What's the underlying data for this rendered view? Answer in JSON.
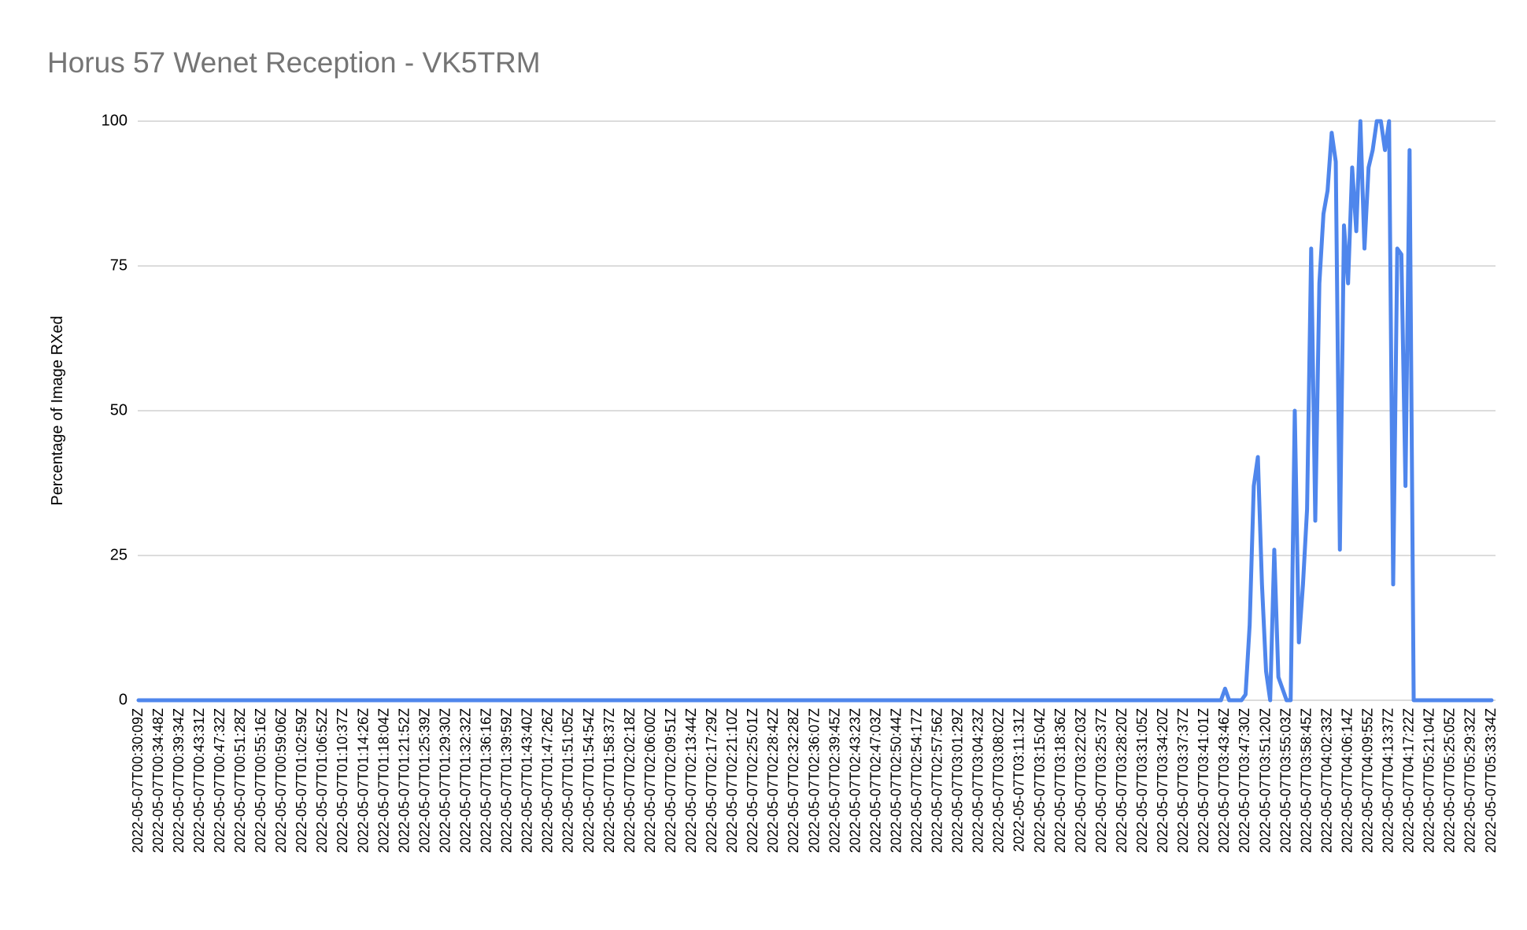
{
  "chart_data": {
    "type": "line",
    "title": "Horus 57 Wenet Reception - VK5TRM",
    "y_label": "Percentage of Image RXed",
    "categories": [
      "2022-05-07T00:30:09Z",
      null,
      null,
      null,
      null,
      "2022-05-07T00:34:48Z",
      null,
      null,
      null,
      null,
      "2022-05-07T00:39:34Z",
      null,
      null,
      null,
      null,
      "2022-05-07T00:43:31Z",
      null,
      null,
      null,
      null,
      "2022-05-07T00:47:32Z",
      null,
      null,
      null,
      null,
      "2022-05-07T00:51:28Z",
      null,
      null,
      null,
      null,
      "2022-05-07T00:55:16Z",
      null,
      null,
      null,
      null,
      "2022-05-07T00:59:06Z",
      null,
      null,
      null,
      null,
      "2022-05-07T01:02:59Z",
      null,
      null,
      null,
      null,
      "2022-05-07T01:06:52Z",
      null,
      null,
      null,
      null,
      "2022-05-07T01:10:37Z",
      null,
      null,
      null,
      null,
      "2022-05-07T01:14:26Z",
      null,
      null,
      null,
      null,
      "2022-05-07T01:18:04Z",
      null,
      null,
      null,
      null,
      "2022-05-07T01:21:52Z",
      null,
      null,
      null,
      null,
      "2022-05-07T01:25:39Z",
      null,
      null,
      null,
      null,
      "2022-05-07T01:29:30Z",
      null,
      null,
      null,
      null,
      "2022-05-07T01:32:32Z",
      null,
      null,
      null,
      null,
      "2022-05-07T01:36:16Z",
      null,
      null,
      null,
      null,
      "2022-05-07T01:39:59Z",
      null,
      null,
      null,
      null,
      "2022-05-07T01:43:40Z",
      null,
      null,
      null,
      null,
      "2022-05-07T01:47:26Z",
      null,
      null,
      null,
      null,
      "2022-05-07T01:51:05Z",
      null,
      null,
      null,
      null,
      "2022-05-07T01:54:54Z",
      null,
      null,
      null,
      null,
      "2022-05-07T01:58:37Z",
      null,
      null,
      null,
      null,
      "2022-05-07T02:02:18Z",
      null,
      null,
      null,
      null,
      "2022-05-07T02:06:00Z",
      null,
      null,
      null,
      null,
      "2022-05-07T02:09:51Z",
      null,
      null,
      null,
      null,
      "2022-05-07T02:13:44Z",
      null,
      null,
      null,
      null,
      "2022-05-07T02:17:29Z",
      null,
      null,
      null,
      null,
      "2022-05-07T02:21:10Z",
      null,
      null,
      null,
      null,
      "2022-05-07T02:25:01Z",
      null,
      null,
      null,
      null,
      "2022-05-07T02:28:42Z",
      null,
      null,
      null,
      null,
      "2022-05-07T02:32:28Z",
      null,
      null,
      null,
      null,
      "2022-05-07T02:36:07Z",
      null,
      null,
      null,
      null,
      "2022-05-07T02:39:45Z",
      null,
      null,
      null,
      null,
      "2022-05-07T02:43:23Z",
      null,
      null,
      null,
      null,
      "2022-05-07T02:47:03Z",
      null,
      null,
      null,
      null,
      "2022-05-07T02:50:44Z",
      null,
      null,
      null,
      null,
      "2022-05-07T02:54:17Z",
      null,
      null,
      null,
      null,
      "2022-05-07T02:57:56Z",
      null,
      null,
      null,
      null,
      "2022-05-07T03:01:29Z",
      null,
      null,
      null,
      null,
      "2022-05-07T03:04:23Z",
      null,
      null,
      null,
      null,
      "2022-05-07T03:08:02Z",
      null,
      null,
      null,
      null,
      "2022-05-07T03:11:31Z",
      null,
      null,
      null,
      null,
      "2022-05-07T03:15:04Z",
      null,
      null,
      null,
      null,
      "2022-05-07T03:18:36Z",
      null,
      null,
      null,
      null,
      "2022-05-07T03:22:03Z",
      null,
      null,
      null,
      null,
      "2022-05-07T03:25:37Z",
      null,
      null,
      null,
      null,
      "2022-05-07T03:28:20Z",
      null,
      null,
      null,
      null,
      "2022-05-07T03:31:05Z",
      null,
      null,
      null,
      null,
      "2022-05-07T03:34:20Z",
      null,
      null,
      null,
      null,
      "2022-05-07T03:37:37Z",
      null,
      null,
      null,
      null,
      "2022-05-07T03:41:01Z",
      null,
      null,
      null,
      null,
      "2022-05-07T03:43:46Z",
      null,
      null,
      null,
      null,
      "2022-05-07T03:47:30Z",
      null,
      null,
      null,
      null,
      "2022-05-07T03:51:20Z",
      null,
      null,
      null,
      null,
      "2022-05-07T03:55:03Z",
      null,
      null,
      null,
      null,
      "2022-05-07T03:58:45Z",
      null,
      null,
      null,
      null,
      "2022-05-07T04:02:33Z",
      null,
      null,
      null,
      null,
      "2022-05-07T04:06:14Z",
      null,
      null,
      null,
      null,
      "2022-05-07T04:09:55Z",
      null,
      null,
      null,
      null,
      "2022-05-07T04:13:37Z",
      null,
      null,
      null,
      null,
      "2022-05-07T04:17:22Z",
      null,
      null,
      null,
      null,
      "2022-05-07T05:21:04Z",
      null,
      null,
      null,
      null,
      "2022-05-07T05:25:05Z",
      null,
      null,
      null,
      null,
      "2022-05-07T05:29:32Z",
      null,
      null,
      null,
      null,
      "2022-05-07T05:33:34Z"
    ],
    "values": [
      0,
      0,
      0,
      0,
      0,
      0,
      0,
      0,
      0,
      0,
      0,
      0,
      0,
      0,
      0,
      0,
      0,
      0,
      0,
      0,
      0,
      0,
      0,
      0,
      0,
      0,
      0,
      0,
      0,
      0,
      0,
      0,
      0,
      0,
      0,
      0,
      0,
      0,
      0,
      0,
      0,
      0,
      0,
      0,
      0,
      0,
      0,
      0,
      0,
      0,
      0,
      0,
      0,
      0,
      0,
      0,
      0,
      0,
      0,
      0,
      0,
      0,
      0,
      0,
      0,
      0,
      0,
      0,
      0,
      0,
      0,
      0,
      0,
      0,
      0,
      0,
      0,
      0,
      0,
      0,
      0,
      0,
      0,
      0,
      0,
      0,
      0,
      0,
      0,
      0,
      0,
      0,
      0,
      0,
      0,
      0,
      0,
      0,
      0,
      0,
      0,
      0,
      0,
      0,
      0,
      0,
      0,
      0,
      0,
      0,
      0,
      0,
      0,
      0,
      0,
      0,
      0,
      0,
      0,
      0,
      0,
      0,
      0,
      0,
      0,
      0,
      0,
      0,
      0,
      0,
      0,
      0,
      0,
      0,
      0,
      0,
      0,
      0,
      0,
      0,
      0,
      0,
      0,
      0,
      0,
      0,
      0,
      0,
      0,
      0,
      0,
      0,
      0,
      0,
      0,
      0,
      0,
      0,
      0,
      0,
      0,
      0,
      0,
      0,
      0,
      0,
      0,
      0,
      0,
      0,
      0,
      0,
      0,
      0,
      0,
      0,
      0,
      0,
      0,
      0,
      0,
      0,
      0,
      0,
      0,
      0,
      0,
      0,
      0,
      0,
      0,
      0,
      0,
      0,
      0,
      0,
      0,
      0,
      0,
      0,
      0,
      0,
      0,
      0,
      0,
      0,
      0,
      0,
      0,
      0,
      0,
      0,
      0,
      0,
      0,
      0,
      0,
      0,
      0,
      0,
      0,
      0,
      0,
      0,
      0,
      0,
      0,
      0,
      0,
      0,
      0,
      0,
      0,
      0,
      0,
      0,
      0,
      0,
      0,
      0,
      0,
      0,
      0,
      0,
      0,
      0,
      0,
      0,
      0,
      0,
      0,
      0,
      0,
      0,
      0,
      0,
      0,
      0,
      0,
      0,
      0,
      0,
      0,
      0,
      0,
      2,
      0,
      0,
      0,
      0,
      1,
      13,
      37,
      42,
      20,
      5,
      0,
      26,
      4,
      2,
      0,
      0,
      50,
      10,
      20,
      33,
      78,
      31,
      72,
      84,
      88,
      98,
      93,
      26,
      82,
      72,
      92,
      81,
      100,
      78,
      92,
      95,
      100,
      100,
      95,
      100,
      20,
      78,
      77,
      37,
      95,
      0,
      0,
      0,
      0,
      0,
      0,
      0,
      0,
      0,
      0,
      0,
      0,
      0,
      0,
      0,
      0,
      0,
      0,
      0,
      0
    ],
    "color": "#4f86ec",
    "ylim": [
      0,
      100
    ],
    "yticks": [
      0,
      25,
      50,
      75,
      100
    ],
    "grid": true
  }
}
